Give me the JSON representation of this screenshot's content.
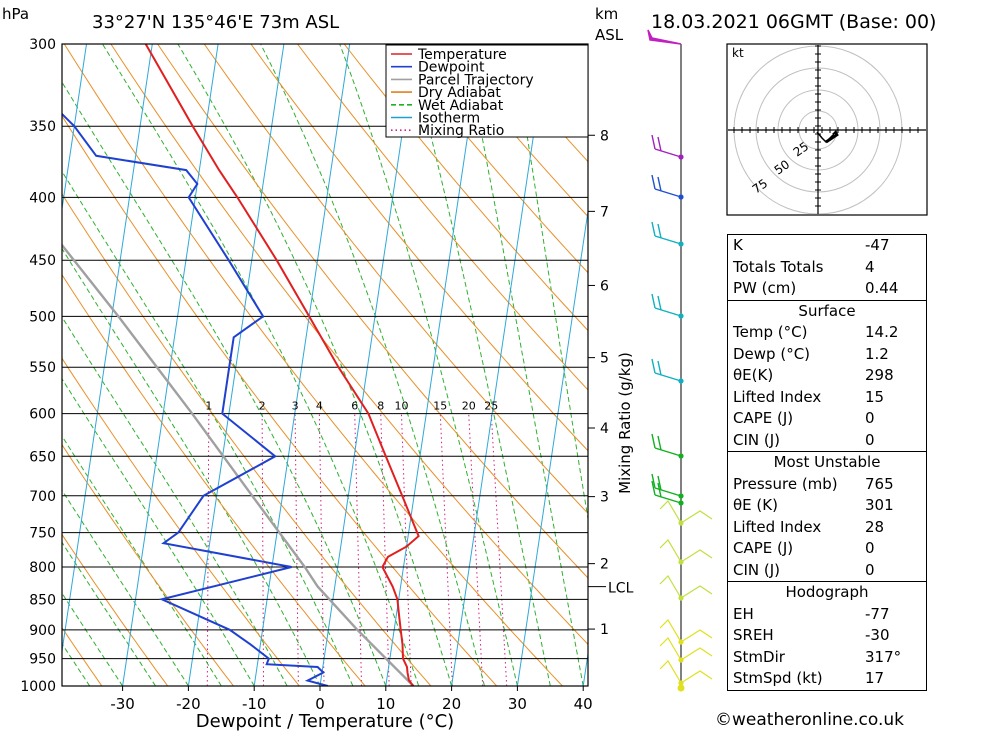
{
  "header": {
    "location": "33°27'N  135°46'E  73m  ASL",
    "datetime": "18.03.2021  06GMT  (Base: 00)",
    "pressure_unit": "hPa",
    "height_unit_top": "km",
    "height_unit_bottom": "ASL"
  },
  "chart_data": {
    "type": "line",
    "chart_kind": "skew-T log-P sounding",
    "xlabel": "Dewpoint / Temperature (°C)",
    "x_ticks": [
      -30,
      -20,
      -10,
      0,
      10,
      20,
      30,
      40
    ],
    "pressure_levels": [
      300,
      350,
      400,
      450,
      500,
      550,
      600,
      650,
      700,
      750,
      800,
      850,
      900,
      950,
      1000
    ],
    "height_ticks_km": [
      1,
      2,
      3,
      4,
      5,
      6,
      7,
      8
    ],
    "lcl_label": "LCL",
    "lcl_pressure": 830,
    "mixing_ratio_label": "Mixing Ratio (g/kg)",
    "mixing_ratio_values": [
      "1",
      "2",
      "3",
      "4",
      "6",
      "8",
      "10",
      "15",
      "20",
      "25"
    ],
    "legend": {
      "position": "top-right",
      "entries": [
        {
          "name": "Temperature",
          "color": "#e02020",
          "style": "solid"
        },
        {
          "name": "Dewpoint",
          "color": "#2040d0",
          "style": "solid"
        },
        {
          "name": "Parcel Trajectory",
          "color": "#a0a0a0",
          "style": "solid"
        },
        {
          "name": "Dry Adiabat",
          "color": "#e08020",
          "style": "solid"
        },
        {
          "name": "Wet Adiabat",
          "color": "#20b020",
          "style": "dashed"
        },
        {
          "name": "Isotherm",
          "color": "#20a0d0",
          "style": "solid"
        },
        {
          "name": "Mixing Ratio",
          "color": "#d02080",
          "style": "dotted"
        }
      ]
    },
    "series": [
      {
        "name": "Temperature",
        "points": [
          [
            1000,
            14.2
          ],
          [
            990,
            13.4
          ],
          [
            975,
            13.0
          ],
          [
            965,
            12.8
          ],
          [
            950,
            12.0
          ],
          [
            925,
            11.6
          ],
          [
            900,
            11.0
          ],
          [
            875,
            10.4
          ],
          [
            850,
            9.8
          ],
          [
            830,
            8.8
          ],
          [
            800,
            6.8
          ],
          [
            785,
            7.4
          ],
          [
            770,
            10.0
          ],
          [
            755,
            11.6
          ],
          [
            700,
            8.2
          ],
          [
            650,
            4.8
          ],
          [
            600,
            1.2
          ],
          [
            550,
            -4.4
          ],
          [
            500,
            -10.0
          ],
          [
            450,
            -16.2
          ],
          [
            400,
            -23.6
          ],
          [
            380,
            -27.0
          ],
          [
            350,
            -32.0
          ],
          [
            300,
            -41.0
          ]
        ]
      },
      {
        "name": "Dewpoint",
        "points": [
          [
            1000,
            1.2
          ],
          [
            990,
            -2.0
          ],
          [
            975,
            0.2
          ],
          [
            965,
            -0.8
          ],
          [
            960,
            -8.6
          ],
          [
            950,
            -8.4
          ],
          [
            925,
            -11.5
          ],
          [
            900,
            -15.0
          ],
          [
            850,
            -26.0
          ],
          [
            800,
            -7.0
          ],
          [
            765,
            -27.0
          ],
          [
            750,
            -25.0
          ],
          [
            700,
            -22.0
          ],
          [
            650,
            -12.0
          ],
          [
            600,
            -21.0
          ],
          [
            550,
            -21.0
          ],
          [
            520,
            -21.0
          ],
          [
            500,
            -17.0
          ],
          [
            450,
            -23.5
          ],
          [
            400,
            -31.0
          ],
          [
            390,
            -30.0
          ],
          [
            380,
            -32.0
          ],
          [
            370,
            -46.0
          ],
          [
            350,
            -50.0
          ],
          [
            330,
            -55.5
          ]
        ]
      },
      {
        "name": "Parcel Trajectory",
        "points": [
          [
            1000,
            14.2
          ],
          [
            900,
            4.4
          ],
          [
            830,
            -2.6
          ],
          [
            800,
            -5.0
          ],
          [
            700,
            -14.6
          ],
          [
            600,
            -25.6
          ],
          [
            500,
            -39.0
          ],
          [
            400,
            -56.0
          ],
          [
            330,
            -70.0
          ]
        ]
      }
    ]
  },
  "hodograph": {
    "unit": "kt",
    "ring_labels": [
      "25",
      "50",
      "75"
    ]
  },
  "indices": {
    "rows": [
      {
        "label": "K",
        "value": "-47"
      },
      {
        "label": "Totals Totals",
        "value": "4"
      },
      {
        "label": "PW (cm)",
        "value": "0.44"
      }
    ]
  },
  "surface": {
    "title": "Surface",
    "rows": [
      {
        "label": "Temp (°C)",
        "value": "14.2"
      },
      {
        "label": "Dewp (°C)",
        "value": "1.2"
      },
      {
        "label": "θE(K)",
        "value": "298"
      },
      {
        "label": "Lifted Index",
        "value": "15"
      },
      {
        "label": "CAPE (J)",
        "value": "0"
      },
      {
        "label": "CIN (J)",
        "value": "0"
      }
    ]
  },
  "most_unstable": {
    "title": "Most Unstable",
    "rows": [
      {
        "label": "Pressure (mb)",
        "value": "765"
      },
      {
        "label": "θE (K)",
        "value": "301"
      },
      {
        "label": "Lifted Index",
        "value": "28"
      },
      {
        "label": "CAPE (J)",
        "value": "0"
      },
      {
        "label": "CIN (J)",
        "value": "0"
      }
    ]
  },
  "hodograph_stats": {
    "title": "Hodograph",
    "rows": [
      {
        "label": "EH",
        "value": "-77"
      },
      {
        "label": "SREH",
        "value": "-30"
      },
      {
        "label": "StmDir",
        "value": "317°"
      },
      {
        "label": "StmSpd (kt)",
        "value": "17"
      }
    ]
  },
  "copyright": "©weatheronline.co.uk"
}
